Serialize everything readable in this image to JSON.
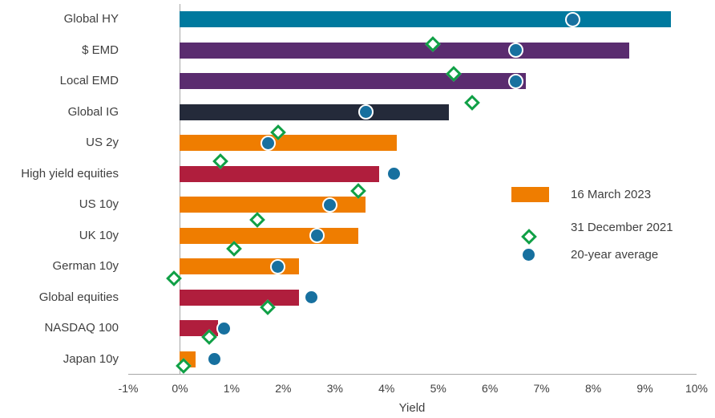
{
  "chart_data": {
    "type": "bar",
    "orientation": "horizontal",
    "title": "",
    "xlabel": "Yield",
    "ylabel": "",
    "xlim": [
      -1,
      10
    ],
    "grid": false,
    "legend_position": "middle-right",
    "x_ticks": [
      "-1%",
      "0%",
      "1%",
      "2%",
      "3%",
      "4%",
      "5%",
      "6%",
      "7%",
      "8%",
      "9%",
      "10%"
    ],
    "categories": [
      "Global HY",
      "$ EMD",
      "Local EMD",
      "Global IG",
      "US 2y",
      "High yield equities",
      "US 10y",
      "UK 10y",
      "German 10y",
      "Global equities",
      "NASDAQ 100",
      "Japan 10y"
    ],
    "bar_colors": [
      "#00799E",
      "#5A2C6F",
      "#5A2C6F",
      "#242A3A",
      "#EF7D00",
      "#B01E3D",
      "#EF7D00",
      "#EF7D00",
      "#EF7D00",
      "#B01E3D",
      "#B01E3D",
      "#EF7D00"
    ],
    "series": [
      {
        "name": "16 March 2023",
        "type": "bar",
        "color": "#EF7D00",
        "values": [
          9.5,
          8.7,
          6.7,
          5.2,
          4.2,
          3.85,
          3.6,
          3.45,
          2.3,
          2.3,
          0.73,
          0.3
        ]
      },
      {
        "name": "31 December 2021",
        "type": "scatter",
        "marker": "diamond-outline",
        "color": "#10A046",
        "values": [
          4.9,
          5.3,
          5.65,
          1.9,
          0.78,
          3.45,
          1.5,
          1.05,
          -0.12,
          1.7,
          0.57,
          0.07
        ]
      },
      {
        "name": "20-year average",
        "type": "scatter",
        "marker": "circle",
        "color": "#17709F",
        "values": [
          7.6,
          6.5,
          6.5,
          3.6,
          1.7,
          4.15,
          2.9,
          2.65,
          1.9,
          2.55,
          0.85,
          0.67
        ]
      }
    ],
    "axis_color": "#a6a6a6",
    "text_color": "#404040"
  }
}
